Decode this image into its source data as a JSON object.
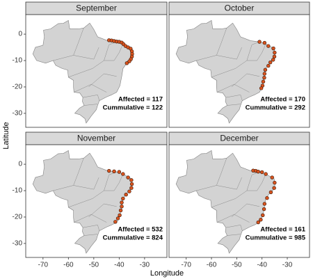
{
  "axes": {
    "xlabel": "Longitude",
    "ylabel": "Latitude"
  },
  "chart_data": [
    {
      "type": "scatter",
      "title": "September",
      "annotations": [
        "Affected = 117",
        "Cummulative = 122"
      ],
      "color": "#d9531e",
      "xlim": [
        -76.8,
        -21.2
      ],
      "ylim": [
        -35.3,
        7.4
      ],
      "yticks": [
        0,
        -10,
        -20,
        -30
      ],
      "x": [
        -44,
        -43,
        -42,
        -41,
        -40,
        -39,
        -38.3,
        -37.5,
        -36.5,
        -35.5,
        -35,
        -34.9,
        -35,
        -35.4,
        -36,
        -37
      ],
      "y": [
        -2.3,
        -2.4,
        -2.6,
        -2.8,
        -2.9,
        -3.2,
        -3.8,
        -4.5,
        -5,
        -5.5,
        -6.5,
        -7.5,
        -8.5,
        -9.5,
        -10.3,
        -11
      ]
    },
    {
      "type": "scatter",
      "title": "October",
      "annotations": [
        "Affected = 170",
        "Cummulative = 292"
      ],
      "color": "#d9531e",
      "xlim": [
        -76.8,
        -21.2
      ],
      "ylim": [
        -35.3,
        7.4
      ],
      "x": [
        -41,
        -39,
        -37.5,
        -35.5,
        -35,
        -35.1,
        -35.6,
        -36.7,
        -37.5,
        -38.7,
        -39,
        -39.1,
        -39.5,
        -39.8,
        -40.3
      ],
      "y": [
        -2.9,
        -3.3,
        -4.5,
        -5.4,
        -7,
        -8.5,
        -9.7,
        -10.7,
        -12,
        -13.5,
        -15,
        -16.5,
        -18,
        -19.5,
        -20.5
      ]
    },
    {
      "type": "scatter",
      "title": "November",
      "annotations": [
        "Affected = 532",
        "Cummulative = 824"
      ],
      "color": "#d9531e",
      "xlim": [
        -76.8,
        -21.2
      ],
      "ylim": [
        -35.3,
        7.4
      ],
      "xticks": [
        -70,
        -60,
        -50,
        -40,
        -30
      ],
      "yticks": [
        0,
        -10,
        -20,
        -30
      ],
      "x": [
        -44,
        -42,
        -40,
        -38.5,
        -36.5,
        -35.2,
        -35,
        -35.2,
        -36,
        -37.3,
        -38.5,
        -39,
        -39,
        -39.4,
        -39.8,
        -40.5,
        -41.5
      ],
      "y": [
        -2.5,
        -2.7,
        -2.9,
        -3.7,
        -5,
        -6,
        -7.5,
        -9,
        -10.3,
        -11.5,
        -13,
        -14.5,
        -16,
        -17.5,
        -19.3,
        -20.5,
        -21.8
      ]
    },
    {
      "type": "scatter",
      "title": "December",
      "annotations": [
        "Affected = 161",
        "Cummulative = 985"
      ],
      "color": "#d9531e",
      "xlim": [
        -76.8,
        -21.2
      ],
      "ylim": [
        -35.3,
        7.4
      ],
      "xticks": [
        -70,
        -60,
        -50,
        -40,
        -30
      ],
      "x": [
        -43.5,
        -42.5,
        -41.5,
        -40,
        -38.5,
        -36,
        -35,
        -35.2,
        -36.5,
        -38,
        -39,
        -39.2,
        -39.7,
        -40.5,
        -41.5
      ],
      "y": [
        -2.4,
        -2.5,
        -2.8,
        -3,
        -3.7,
        -5,
        -7,
        -9,
        -10.6,
        -12.8,
        -15,
        -17,
        -19.3,
        -21,
        -22
      ]
    }
  ]
}
